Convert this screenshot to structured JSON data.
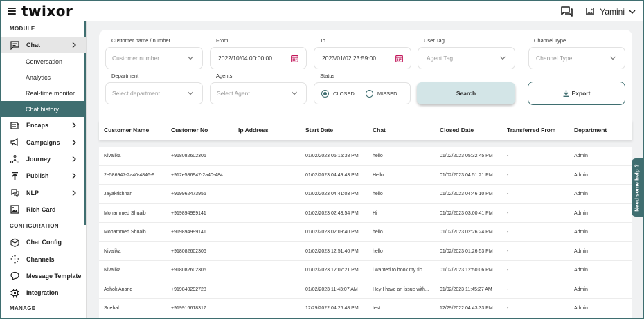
{
  "header": {
    "logo": "twixor",
    "user_name": "Yamini"
  },
  "sidebar": {
    "sections": [
      "MODULE",
      "CONFIGURATION",
      "MANAGE"
    ],
    "module_items": [
      {
        "label": "Chat",
        "icon": "chat-bubble-icon",
        "chevron": true
      },
      {
        "label": "Encaps",
        "icon": "encaps-icon",
        "chevron": true
      },
      {
        "label": "Campaigns",
        "icon": "megaphone-icon",
        "chevron": true
      },
      {
        "label": "Journey",
        "icon": "journey-icon",
        "chevron": true
      },
      {
        "label": "Publish",
        "icon": "publish-icon",
        "chevron": true
      },
      {
        "label": "NLP",
        "icon": "nlp-icon",
        "chevron": true
      },
      {
        "label": "Rich Card",
        "icon": "rich-card-icon",
        "chevron": false
      }
    ],
    "chat_subitems": [
      "Conversation",
      "Analytics",
      "Real-time monitor",
      "Chat history"
    ],
    "config_items": [
      {
        "label": "Chat Config",
        "icon": "cube-icon"
      },
      {
        "label": "Channels",
        "icon": "channels-icon"
      },
      {
        "label": "Message Template",
        "icon": "message-icon"
      },
      {
        "label": "Integration",
        "icon": "integration-icon"
      }
    ]
  },
  "filters": {
    "customer_label": "Customer name / number",
    "customer_placeholder": "Customer number",
    "from_label": "From",
    "from_value": "2022/10/04 00:00:00",
    "to_label": "To",
    "to_value": "2023/01/02 23:59:00",
    "user_tag_label": "User Tag",
    "user_tag_placeholder": "Agent Tag",
    "channel_label": "Channel Type",
    "channel_placeholder": "Channel Type",
    "department_label": "Department",
    "department_placeholder": "Select department",
    "agents_label": "Agents",
    "agents_placeholder": "Select Agent",
    "status_label": "Status",
    "status_closed": "CLOSED",
    "status_missed": "MISSED",
    "search_label": "Search",
    "export_label": "Export"
  },
  "table": {
    "columns": [
      "Customer Name",
      "Customer No",
      "Ip Address",
      "Start Date",
      "Chat",
      "Closed Date",
      "Transferred From",
      "Department"
    ],
    "rows": [
      [
        "Nivalika",
        "+918082602306",
        "",
        "01/02/2023 05:15:38 PM",
        "hello",
        "01/02/2023 05:32:45 PM",
        "-",
        "Admin"
      ],
      [
        "2e586947-2a40-4846-9...",
        "+912e586947-2a40-484...",
        "",
        "01/02/2023 04:49:43 PM",
        "Hello",
        "01/02/2023 04:51:21 PM",
        "-",
        "Admin"
      ],
      [
        "Jayakrishnan",
        "+919962473955",
        "",
        "01/02/2023 04:41:03 PM",
        "hello",
        "01/02/2023 04:46:10 PM",
        "-",
        "Admin"
      ],
      [
        "Mohammed Shuaib",
        "+919894999141",
        "",
        "01/02/2023 02:43:54 PM",
        "Hi",
        "01/02/2023 03:00:41 PM",
        "-",
        "Admin"
      ],
      [
        "Mohammed Shuaib",
        "+919894999141",
        "",
        "01/02/2023 02:09:40 PM",
        "hello",
        "01/02/2023 02:26:24 PM",
        "-",
        "Admin"
      ],
      [
        "Nivalika",
        "+918082602306",
        "",
        "01/02/2023 12:51:40 PM",
        "hello",
        "01/02/2023 01:26:53 PM",
        "-",
        "Admin"
      ],
      [
        "Nivalika",
        "+918082602306",
        "",
        "01/02/2023 12:07:21 PM",
        "i wanted to book my tic...",
        "01/02/2023 12:50:06 PM",
        "-",
        "Admin"
      ],
      [
        "Ashok Anand",
        "+919840292728",
        "",
        "01/02/2023 11:43:07 AM",
        "Hey I have an issue with...",
        "01/02/2023 11:45:27 AM",
        "-",
        "Admin"
      ],
      [
        "Snehal",
        "+919916618317",
        "",
        "12/29/2022 04:26:48 PM",
        "test",
        "12/29/2022 04:43:33 PM",
        "-",
        "Admin"
      ]
    ]
  },
  "help_tab": "Need some help ?",
  "colors": {
    "accent": "#3f6e70",
    "calendar": "#c2185b",
    "search_btn": "#d3e5e7"
  }
}
